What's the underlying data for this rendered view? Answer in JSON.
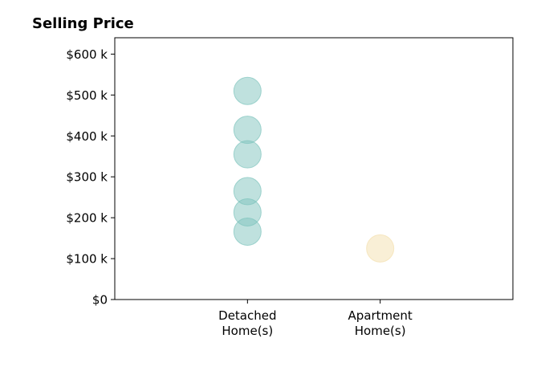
{
  "chart_data": {
    "type": "scatter",
    "title": "Selling Price",
    "xlabel": "",
    "ylabel": "",
    "categories": [
      [
        "Detached",
        "Home(s)"
      ],
      [
        "Apartment",
        "Home(s)"
      ]
    ],
    "yticks": [
      {
        "value": 0,
        "label": "$0"
      },
      {
        "value": 100000,
        "label": "$100 k"
      },
      {
        "value": 200000,
        "label": "$200 k"
      },
      {
        "value": 300000,
        "label": "$300 k"
      },
      {
        "value": 400000,
        "label": "$400 k"
      },
      {
        "value": 500000,
        "label": "$500 k"
      },
      {
        "value": 600000,
        "label": "$600 k"
      }
    ],
    "ylim": [
      0,
      640000
    ],
    "xlim": [
      -1,
      2
    ],
    "grid": false,
    "series": [
      {
        "category_index": 0,
        "color": "#7fc4bd",
        "values": [
          510000,
          415000,
          355000,
          265000,
          213000,
          166000
        ]
      },
      {
        "category_index": 1,
        "color": "#f3dfae",
        "values": [
          125000
        ]
      }
    ]
  }
}
